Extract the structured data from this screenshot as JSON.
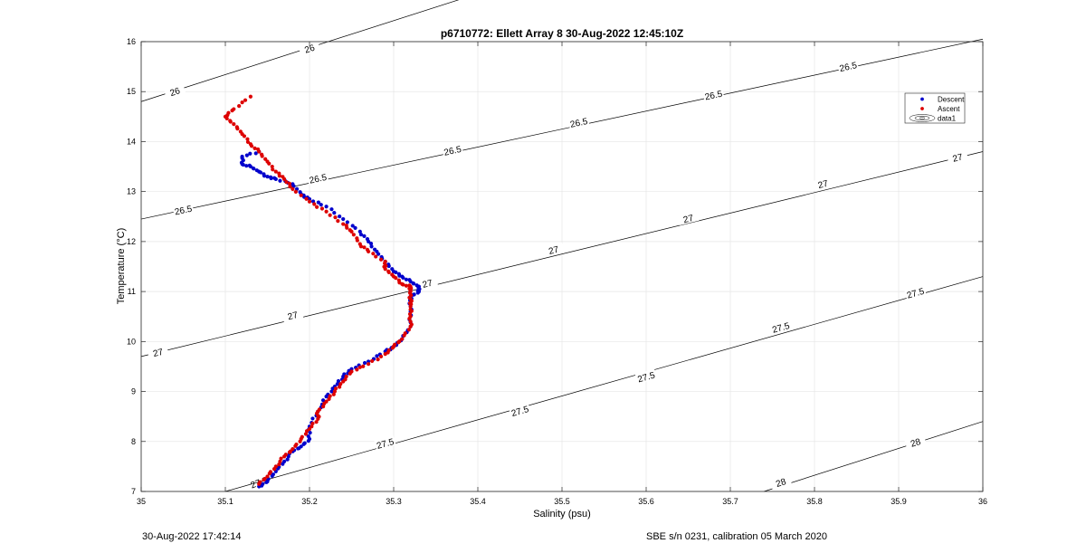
{
  "chart_data": {
    "type": "scatter",
    "title": "p6710772: Ellett Array 8 30-Aug-2022 12:45:10Z",
    "xlabel": "Salinity (psu)",
    "ylabel": "Temperature (°C)",
    "xlim": [
      35,
      36
    ],
    "ylim": [
      7,
      16
    ],
    "xticks": [
      35,
      35.1,
      35.2,
      35.3,
      35.4,
      35.5,
      35.6,
      35.7,
      35.8,
      35.9,
      36
    ],
    "xtick_labels": [
      "35",
      "35.1",
      "35.2",
      "35.3",
      "35.4",
      "35.5",
      "35.6",
      "35.7",
      "35.8",
      "35.9",
      "36"
    ],
    "yticks": [
      7,
      8,
      9,
      10,
      11,
      12,
      13,
      14,
      15,
      16
    ],
    "ytick_labels": [
      "7",
      "8",
      "9",
      "10",
      "11",
      "12",
      "13",
      "14",
      "15",
      "16"
    ],
    "grid": true,
    "legend_position": "top-right",
    "legend": [
      "Descent",
      "Ascent",
      "data1"
    ],
    "series": [
      {
        "name": "Descent",
        "color": "#0000cc",
        "marker": "dot",
        "x": [
          35.14,
          35.15,
          35.16,
          35.17,
          35.18,
          35.19,
          35.2,
          35.2,
          35.21,
          35.22,
          35.23,
          35.24,
          35.25,
          35.27,
          35.29,
          35.3,
          35.31,
          35.32,
          35.32,
          35.32,
          35.32,
          35.33,
          35.33,
          35.32,
          35.31,
          35.3,
          35.29,
          35.28,
          35.27,
          35.26,
          35.24,
          35.22,
          35.2,
          35.19,
          35.18,
          35.16,
          35.15,
          35.14,
          35.13,
          35.12,
          35.12,
          35.14
        ],
        "y": [
          7.1,
          7.2,
          7.4,
          7.6,
          7.8,
          7.9,
          8.05,
          8.3,
          8.6,
          8.9,
          9.1,
          9.3,
          9.45,
          9.6,
          9.8,
          9.9,
          10.05,
          10.3,
          10.6,
          10.8,
          10.9,
          11.0,
          11.1,
          11.2,
          11.3,
          11.4,
          11.6,
          11.8,
          12.0,
          12.2,
          12.45,
          12.7,
          12.85,
          12.95,
          13.15,
          13.25,
          13.3,
          13.4,
          13.5,
          13.55,
          13.7,
          13.8
        ]
      },
      {
        "name": "Ascent",
        "color": "#dd0000",
        "marker": "dot",
        "x": [
          35.14,
          35.15,
          35.16,
          35.17,
          35.18,
          35.19,
          35.2,
          35.21,
          35.21,
          35.22,
          35.23,
          35.24,
          35.25,
          35.27,
          35.29,
          35.3,
          35.31,
          35.32,
          35.32,
          35.32,
          35.32,
          35.32,
          35.32,
          35.31,
          35.3,
          35.29,
          35.29,
          35.27,
          35.26,
          35.25,
          35.24,
          35.22,
          35.2,
          35.18,
          35.17,
          35.16,
          35.15,
          35.14,
          35.13,
          35.12,
          35.11,
          35.1,
          35.11,
          35.13
        ],
        "y": [
          7.15,
          7.3,
          7.5,
          7.7,
          7.85,
          8.05,
          8.25,
          8.45,
          8.6,
          8.8,
          9.0,
          9.2,
          9.4,
          9.55,
          9.75,
          9.9,
          10.05,
          10.3,
          10.5,
          10.7,
          10.85,
          11.0,
          11.1,
          11.15,
          11.3,
          11.45,
          11.6,
          11.8,
          11.95,
          12.2,
          12.35,
          12.6,
          12.8,
          13.05,
          13.25,
          13.4,
          13.6,
          13.8,
          13.95,
          14.15,
          14.35,
          14.5,
          14.65,
          14.9
        ]
      }
    ],
    "contours": [
      {
        "level": "26",
        "s": [
          35,
          36
        ],
        "t": [
          14.8,
          20.2
        ],
        "labels": [
          [
            35.04,
            15.0
          ],
          [
            35.2,
            15.86
          ]
        ]
      },
      {
        "level": "26.5",
        "s": [
          35,
          36
        ],
        "t": [
          12.45,
          16.05
        ],
        "labels": [
          [
            35.05,
            12.63
          ],
          [
            35.21,
            13.26
          ],
          [
            35.37,
            13.82
          ],
          [
            35.52,
            14.38
          ],
          [
            35.68,
            14.93
          ],
          [
            35.84,
            15.5
          ]
        ]
      },
      {
        "level": "27",
        "s": [
          35,
          36
        ],
        "t": [
          9.7,
          13.8
        ],
        "labels": [
          [
            35.02,
            9.78
          ],
          [
            35.18,
            10.52
          ],
          [
            35.34,
            11.16
          ],
          [
            35.49,
            11.83
          ],
          [
            35.65,
            12.46
          ],
          [
            35.81,
            13.15
          ],
          [
            35.97,
            13.68
          ]
        ]
      },
      {
        "level": "27.5",
        "s": [
          35.1,
          36
        ],
        "t": [
          7.0,
          11.3
        ],
        "labels": [
          [
            35.29,
            7.96
          ],
          [
            35.45,
            8.61
          ],
          [
            35.6,
            9.29
          ],
          [
            35.76,
            10.28
          ],
          [
            35.92,
            10.97
          ]
        ]
      },
      {
        "level": "28",
        "s": [
          35.74,
          36
        ],
        "t": [
          7.0,
          8.4
        ],
        "labels": [
          [
            35.76,
            7.18
          ],
          [
            35.92,
            7.98
          ]
        ]
      }
    ],
    "contour_text_extra": {
      "text": "27.5",
      "s": [
        35.14,
        7.18
      ]
    },
    "footer": {
      "left": "30-Aug-2022 17:42:14",
      "right": "SBE s/n 0231, calibration 05 March 2020"
    }
  }
}
